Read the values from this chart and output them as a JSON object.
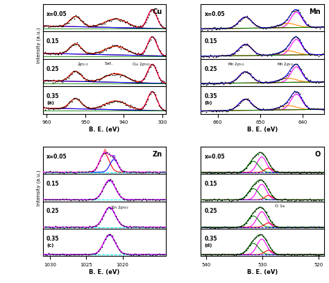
{
  "figure_size": [
    4.74,
    4.07
  ],
  "dpi": 100,
  "concentrations": [
    "x=0.05",
    "0.15",
    "0.25",
    "0.35"
  ],
  "Cu": {
    "xlim": [
      961,
      929
    ],
    "xticks": [
      960,
      950,
      940,
      930
    ],
    "xlabel": "B. E. (eV)",
    "element": "Cu",
    "label": "(a)",
    "p32": 932.6,
    "sat": 942.0,
    "p12": 952.5,
    "p32_sig": 1.2,
    "sat_sig": 2.8,
    "p12_sig": 1.5,
    "p32_amp": 0.65,
    "sat_amp": 0.3,
    "p12_amp": 0.35,
    "bg_slope": 0.003
  },
  "Mn": {
    "xlim": [
      664,
      635
    ],
    "xticks": [
      660,
      650,
      640
    ],
    "xlabel": "B. E. (eV)",
    "element": "Mn",
    "label": "(b)",
    "p32": 641.5,
    "p12": 653.5,
    "psat": 643.5,
    "p32_sig": 1.3,
    "p12_sig": 1.5,
    "psat_sig": 2.0,
    "p32_amp": 0.55,
    "p12_amp": 0.4,
    "psat_amp": 0.15,
    "bg_slope": -0.002
  },
  "Zn": {
    "xlim": [
      1031,
      1014
    ],
    "xticks": [
      1030,
      1025,
      1020
    ],
    "xlabel": "B. E. (eV)",
    "element": "Zn",
    "label": "(c)",
    "pA": 1022.5,
    "pB": 1021.2,
    "pmain": 1021.8,
    "pA_sig": 0.65,
    "pB_sig": 0.55,
    "pmain_sig": 0.8,
    "pA_amp": 0.72,
    "pB_amp": 0.48,
    "pmain_amp": 0.85
  },
  "O": {
    "xlim": [
      541,
      519
    ],
    "xticks": [
      540,
      530,
      520
    ],
    "xlabel": "B. E. (eV)",
    "element": "O",
    "label": "(d)",
    "p1": 530.1,
    "p2": 531.6,
    "p3": 528.9,
    "p1_sig": 0.85,
    "p2_sig": 0.95,
    "p3_sig": 0.7,
    "p1_amp": 0.72,
    "p2_amp": 0.52,
    "p3_amp": 0.2
  }
}
